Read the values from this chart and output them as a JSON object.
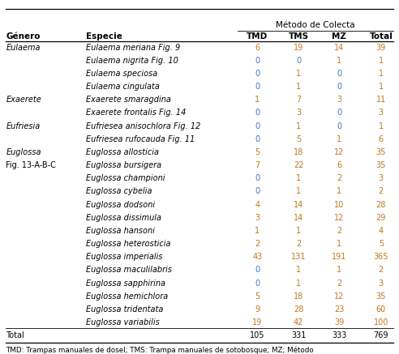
{
  "title_header": "Método de Colecta",
  "col_headers": [
    "Género",
    "Especie",
    "TMD",
    "TMS",
    "MZ",
    "Total"
  ],
  "rows": [
    [
      "Eulaema",
      "Eulaema meriana Fig. 9",
      "6",
      "19",
      "14",
      "39"
    ],
    [
      "",
      "Eulaema nigrita Fig. 10",
      "0",
      "0",
      "1",
      "1"
    ],
    [
      "",
      "Eulaema speciosa",
      "0",
      "1",
      "0",
      "1"
    ],
    [
      "",
      "Eulaema cingulata",
      "0",
      "1",
      "0",
      "1"
    ],
    [
      "Exaerete",
      "Exaerete smaragdina",
      "1",
      "7",
      "3",
      "11"
    ],
    [
      "",
      "Exaerete frontalis Fig. 14",
      "0",
      "3",
      "0",
      "3"
    ],
    [
      "Eufriesia",
      "Eufriesea anisochlora Fig. 12",
      "0",
      "1",
      "0",
      "1"
    ],
    [
      "",
      "Eufriesea rufocauda Fig. 11",
      "0",
      "5",
      "1",
      "6"
    ],
    [
      "Euglossa",
      "Euglossa allosticia",
      "5",
      "18",
      "12",
      "35"
    ],
    [
      "Fig. 13-A-B-C",
      "Euglossa bursigera",
      "7",
      "22",
      "6",
      "35"
    ],
    [
      "",
      "Euglossa championi",
      "0",
      "1",
      "2",
      "3"
    ],
    [
      "",
      "Euglossa cybelia",
      "0",
      "1",
      "1",
      "2"
    ],
    [
      "",
      "Euglossa dodsoni",
      "4",
      "14",
      "10",
      "28"
    ],
    [
      "",
      "Euglossa dissimula",
      "3",
      "14",
      "12",
      "29"
    ],
    [
      "",
      "Euglossa hansoni",
      "1",
      "1",
      "2",
      "4"
    ],
    [
      "",
      "Euglossa heterosticia",
      "2",
      "2",
      "1",
      "5"
    ],
    [
      "",
      "Euglossa imperialis",
      "43",
      "131",
      "191",
      "365"
    ],
    [
      "",
      "Euglossa maculilabris",
      "0",
      "1",
      "1",
      "2"
    ],
    [
      "",
      "Euglossa sapphirina",
      "0",
      "1",
      "2",
      "3"
    ],
    [
      "",
      "Euglossa hemichlora",
      "5",
      "18",
      "12",
      "35"
    ],
    [
      "",
      "Euglossa tridentata",
      "9",
      "28",
      "23",
      "60"
    ],
    [
      "",
      "Euglossa variabilis",
      "19",
      "42",
      "39",
      "100"
    ]
  ],
  "total_row": [
    "Total",
    "",
    "105",
    "331",
    "333",
    "769"
  ],
  "footer": "TMD: Trampas manuales de dosel; TMS: Trampa manuales de sotobosque; MZ; Método",
  "bg_color": "#ffffff",
  "text_color": "#000000",
  "zero_color": "#4472c4",
  "nonzero_color": "#c07820",
  "total_color": "#000000"
}
